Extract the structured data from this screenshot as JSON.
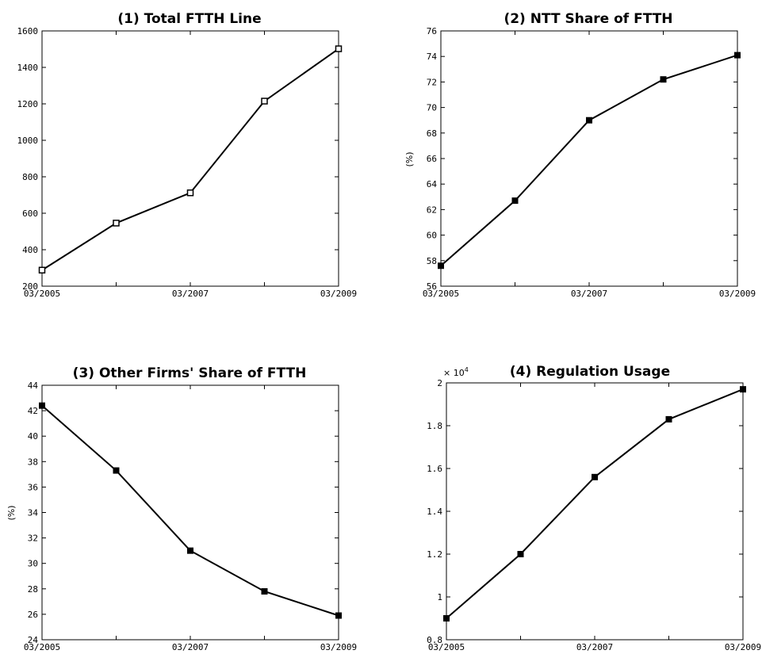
{
  "chart_data": [
    {
      "type": "line",
      "title": "(1) Total FTTH Line",
      "xlabel": "",
      "ylabel": "",
      "x_tick_labels": [
        "03/2005",
        "03/2007",
        "03/2009"
      ],
      "x": [
        "03/2005",
        "03/2006",
        "03/2007",
        "03/2008",
        "03/2009"
      ],
      "values": [
        288,
        546,
        712,
        1215,
        1502
      ],
      "ylim": [
        200,
        1600
      ],
      "yticks": [
        200,
        400,
        600,
        800,
        1000,
        1200,
        1400,
        1600
      ],
      "y_multiplier": "",
      "marker": "open-square",
      "grid": false
    },
    {
      "type": "line",
      "title": "(2) NTT Share of FTTH",
      "xlabel": "",
      "ylabel": "(%)",
      "x_tick_labels": [
        "03/2005",
        "03/2007",
        "03/2009"
      ],
      "x": [
        "03/2005",
        "03/2006",
        "03/2007",
        "03/2008",
        "03/2009"
      ],
      "values": [
        57.6,
        62.7,
        69.0,
        72.2,
        74.1
      ],
      "ylim": [
        56,
        76
      ],
      "yticks": [
        56,
        58,
        60,
        62,
        64,
        66,
        68,
        70,
        72,
        74,
        76
      ],
      "y_multiplier": "",
      "marker": "filled-square",
      "grid": false
    },
    {
      "type": "line",
      "title": "(3) Other Firms' Share of FTTH",
      "xlabel": "",
      "ylabel": "(%)",
      "x_tick_labels": [
        "03/2005",
        "03/2007",
        "03/2009"
      ],
      "x": [
        "03/2005",
        "03/2006",
        "03/2007",
        "03/2008",
        "03/2009"
      ],
      "values": [
        42.4,
        37.3,
        31.0,
        27.8,
        25.9
      ],
      "ylim": [
        24,
        44
      ],
      "yticks": [
        24,
        26,
        28,
        30,
        32,
        34,
        36,
        38,
        40,
        42,
        44
      ],
      "y_multiplier": "",
      "marker": "filled-square",
      "grid": false
    },
    {
      "type": "line",
      "title": "(4) Regulation Usage",
      "xlabel": "",
      "ylabel": "",
      "x_tick_labels": [
        "03/2005",
        "03/2007",
        "03/2009"
      ],
      "x": [
        "03/2005",
        "03/2006",
        "03/2007",
        "03/2008",
        "03/2009"
      ],
      "values": [
        0.9,
        1.2,
        1.56,
        1.83,
        1.97
      ],
      "ylim": [
        0.8,
        2.0
      ],
      "yticks": [
        "0.8",
        "1",
        "1.2",
        "1.4",
        "1.6",
        "1.8",
        "2"
      ],
      "y_multiplier": "× 10",
      "y_multiplier_exponent": "4",
      "marker": "filled-square",
      "grid": false
    }
  ]
}
